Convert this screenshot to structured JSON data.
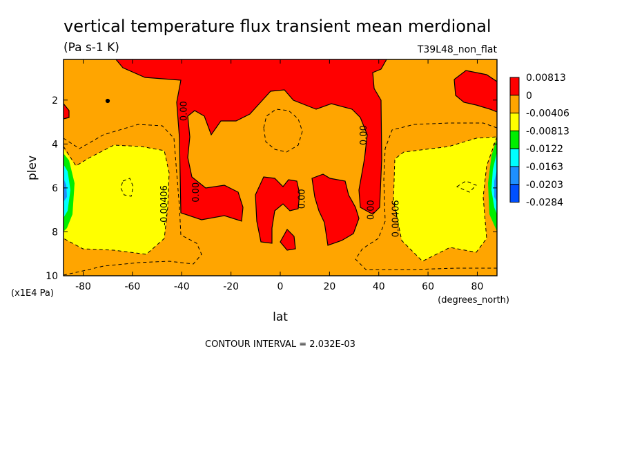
{
  "chart_data": {
    "type": "heatmap",
    "title": "vertical temperature flux transient mean merdional",
    "units": "(Pa s-1 K)",
    "dataset": "T39L48_non_flat",
    "xlabel": "lat",
    "xunits": "(degrees_north)",
    "ylabel": "plev",
    "yunits": "(x1E4 Pa)",
    "xlim": [
      -88,
      88
    ],
    "ylim": [
      0.15,
      10
    ],
    "y_inverted": true,
    "x_ticks": [
      "-80",
      "-60",
      "-40",
      "-20",
      "0",
      "20",
      "40",
      "60",
      "80"
    ],
    "x_tick_values": [
      -80,
      -60,
      -40,
      -20,
      0,
      20,
      40,
      60,
      80
    ],
    "y_ticks": [
      "2",
      "4",
      "6",
      "8",
      "10"
    ],
    "y_tick_values": [
      2,
      4,
      6,
      8,
      10
    ],
    "legend": {
      "placement": "right",
      "levels": [
        "0.00813",
        "0",
        "-0.00406",
        "-0.00813",
        "-0.0122",
        "-0.0163",
        "-0.0203",
        "-0.0284"
      ],
      "colors": [
        "#ff0000",
        "#ffa500",
        "#ffff00",
        "#00ee00",
        "#00ffff",
        "#1e90ff",
        "#0050ff"
      ]
    },
    "contour_labels": [
      {
        "text": "0.00",
        "x": -38,
        "y": 2.5
      },
      {
        "text": "0.00",
        "x": -33,
        "y": 6.2
      },
      {
        "text": "-0.00406",
        "x": -46,
        "y": 6.8
      },
      {
        "text": "0.00",
        "x": 10,
        "y": 6.5
      },
      {
        "text": "0.00",
        "x": 35,
        "y": 3.6
      },
      {
        "text": "0.00",
        "x": 38,
        "y": 7.0
      },
      {
        "text": "0.00406",
        "x": 48,
        "y": 7.4
      }
    ],
    "contour_interval_text": "CONTOUR INTERVAL = 2.032E-03"
  }
}
